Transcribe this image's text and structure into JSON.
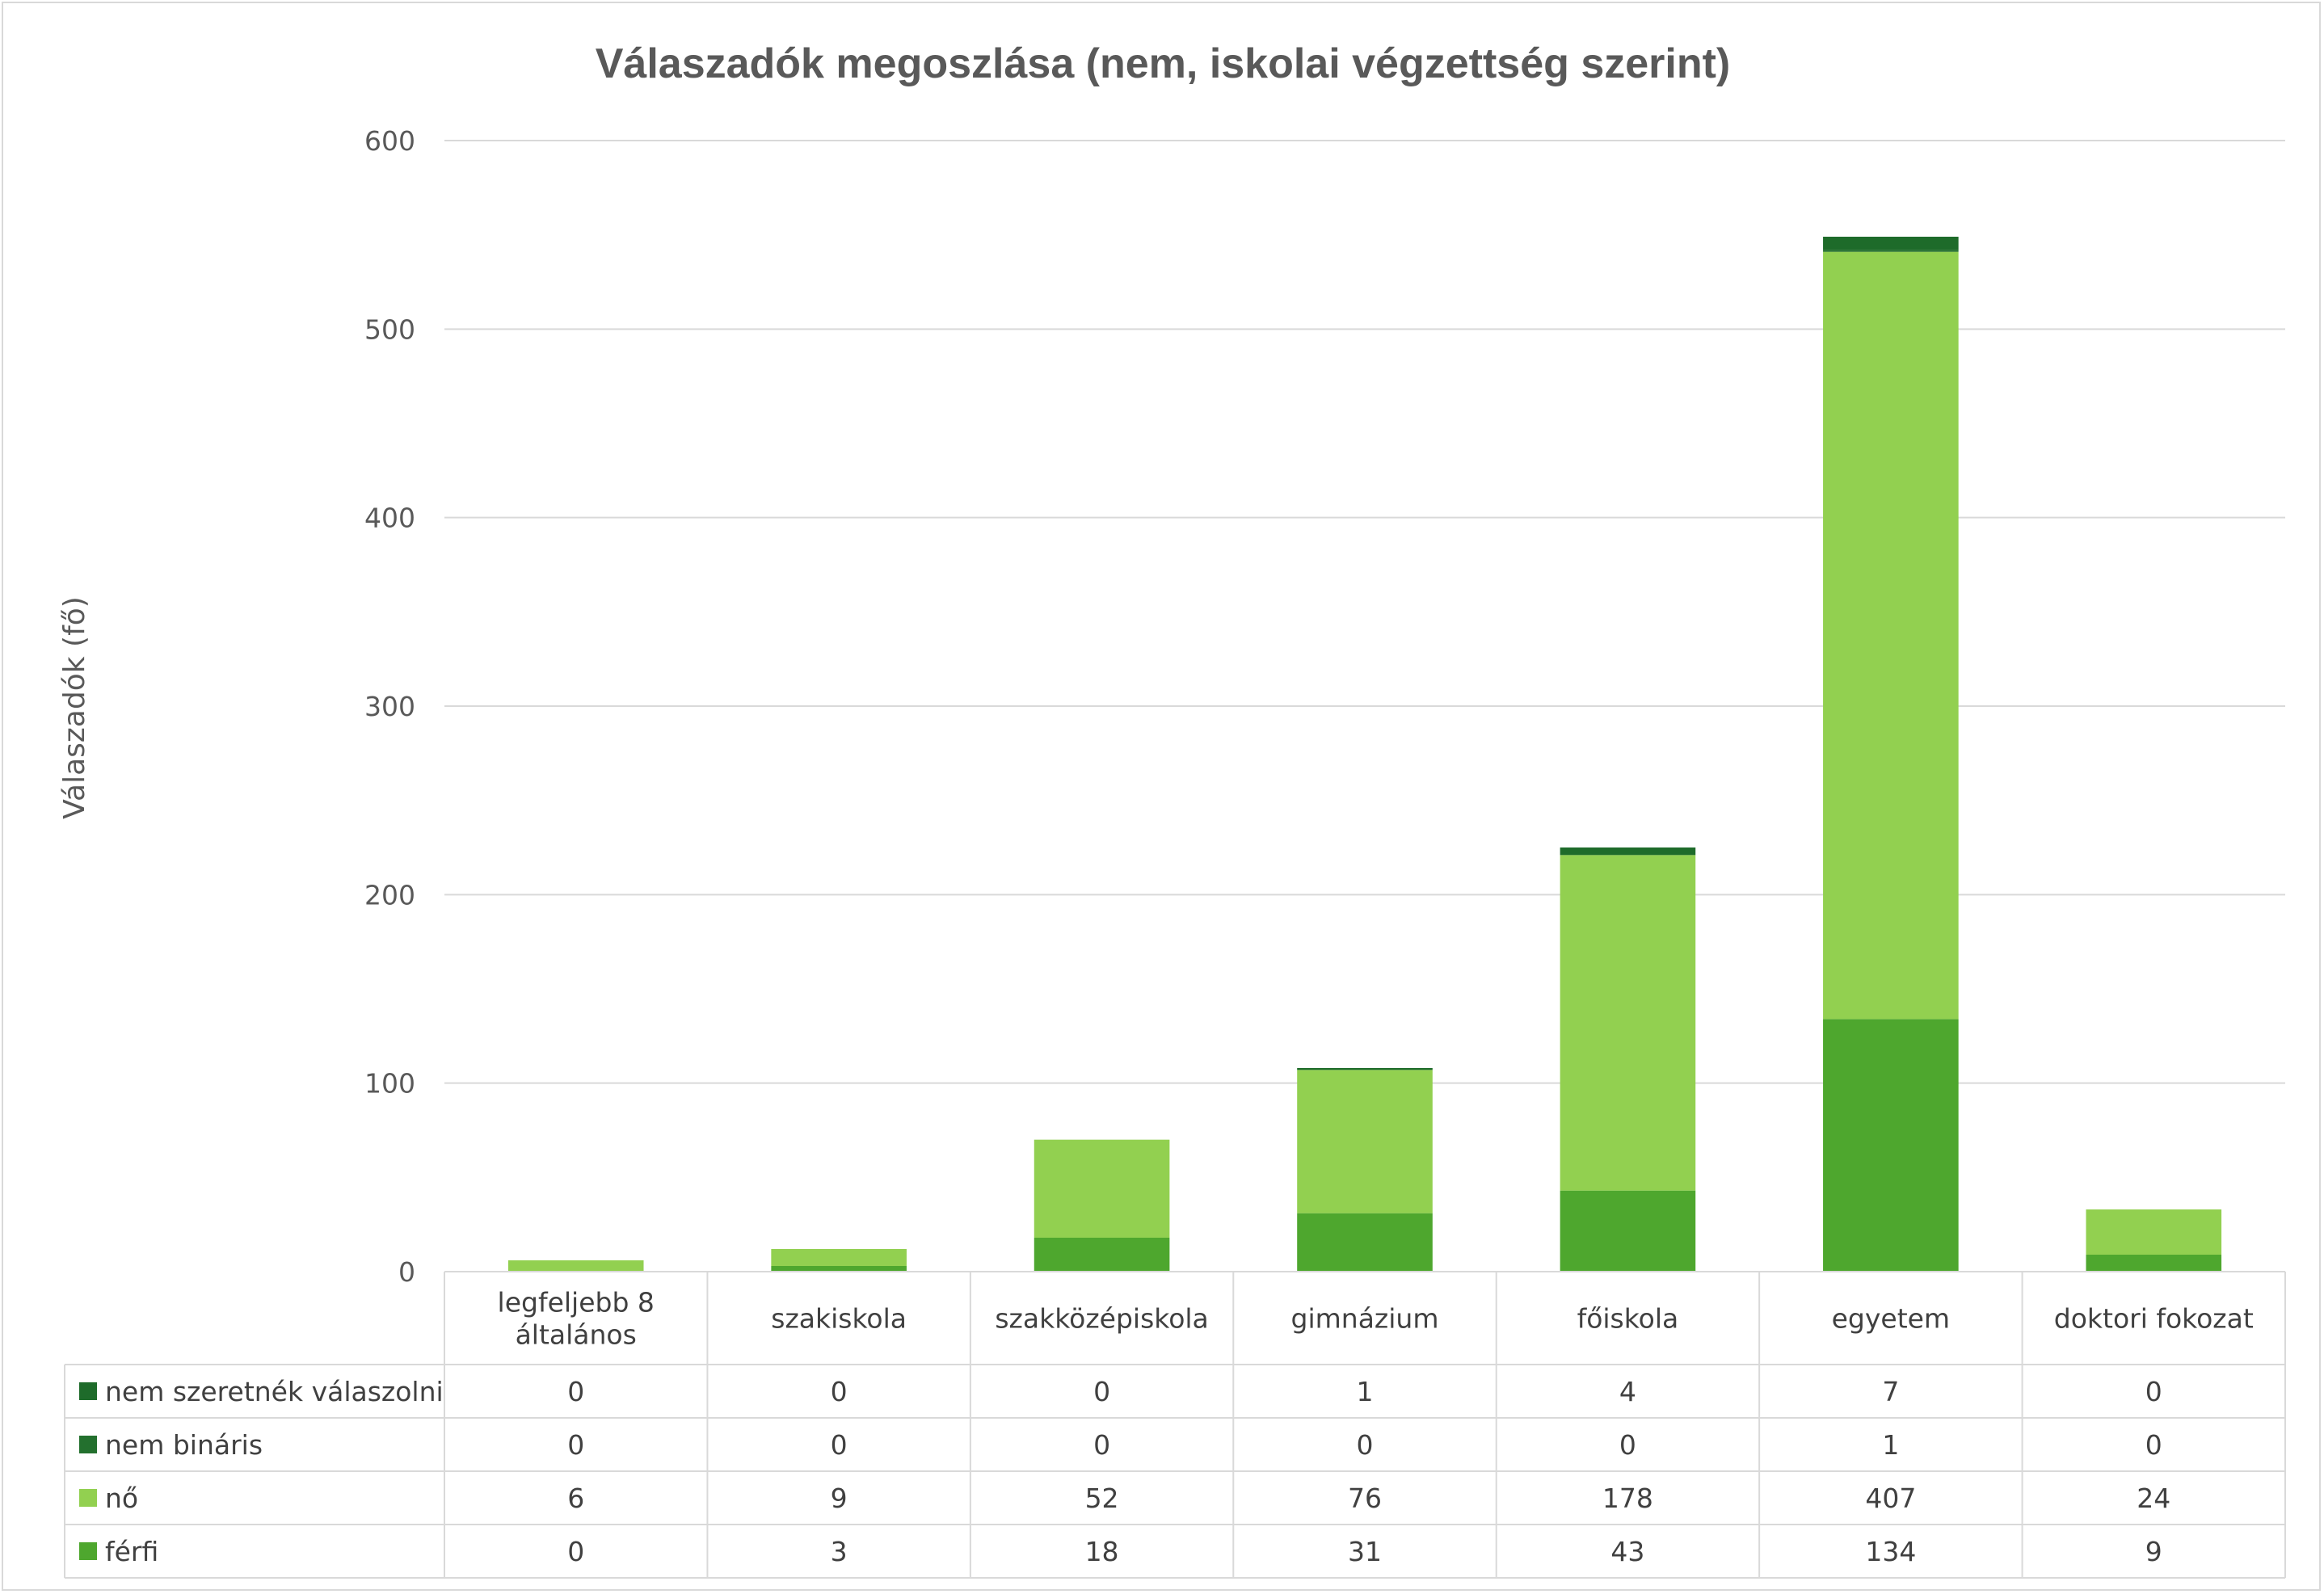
{
  "chart_data": {
    "type": "bar",
    "stacked": true,
    "title": "Válaszadók megoszlása (nem, iskolai végzettség szerint)",
    "ylabel": "Válaszadók (fő)",
    "ylim": [
      0,
      600
    ],
    "yticks": [
      "0",
      "100",
      "200",
      "300",
      "400",
      "500",
      "600"
    ],
    "grid": true,
    "legend_placement": "data table, left",
    "categories": [
      [
        "legfeljebb 8",
        "általános"
      ],
      [
        "szakiskola"
      ],
      [
        "szakközépiskola"
      ],
      [
        "gimnázium"
      ],
      [
        "főiskola"
      ],
      [
        "egyetem"
      ],
      [
        "doktori fokozat"
      ]
    ],
    "series": [
      {
        "name": "nem szeretnék válaszolni",
        "color": "#1e6b2a",
        "values": [
          0,
          0,
          0,
          1,
          4,
          7,
          0
        ]
      },
      {
        "name": "nem bináris",
        "color": "#23702e",
        "values": [
          0,
          0,
          0,
          0,
          0,
          1,
          0
        ]
      },
      {
        "name": "nő",
        "color": "#92d050",
        "values": [
          6,
          9,
          52,
          76,
          178,
          407,
          24
        ]
      },
      {
        "name": "férfi",
        "color": "#4ea72e",
        "values": [
          0,
          3,
          18,
          31,
          43,
          134,
          9
        ]
      }
    ],
    "stack_order": [
      3,
      2,
      1,
      0
    ]
  }
}
